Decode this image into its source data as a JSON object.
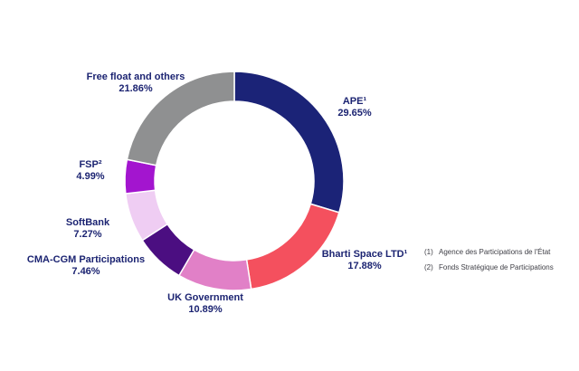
{
  "chart_data": {
    "type": "pie",
    "variant": "donut",
    "title": "",
    "start_angle_deg": 0,
    "direction": "clockwise",
    "legend_position": "around",
    "label_color": "#1c2472",
    "separator_color": "#ffffff",
    "segments": [
      {
        "label": "APE¹",
        "value": 29.65,
        "pct_label": "29.65%",
        "color": "#1b2377"
      },
      {
        "label": "Bharti Space LTD¹",
        "value": 17.88,
        "pct_label": "17.88%",
        "color": "#f4505e"
      },
      {
        "label": "UK Government",
        "value": 10.89,
        "pct_label": "10.89%",
        "color": "#e180c7"
      },
      {
        "label": "CMA-CGM Participations",
        "value": 7.46,
        "pct_label": "7.46%",
        "color": "#4b0e81"
      },
      {
        "label": "SoftBank",
        "value": 7.27,
        "pct_label": "7.27%",
        "color": "#efcdf3"
      },
      {
        "label": "FSP²",
        "value": 4.99,
        "pct_label": "4.99%",
        "color": "#a315cf"
      },
      {
        "label": "Free float and others",
        "value": 21.86,
        "pct_label": "21.86%",
        "color": "#8f9091"
      }
    ]
  },
  "footnotes": [
    {
      "marker": "(1)",
      "text": "Agence des Participations de l'État"
    },
    {
      "marker": "(2)",
      "text": "Fonds Stratégique de Participations"
    }
  ]
}
